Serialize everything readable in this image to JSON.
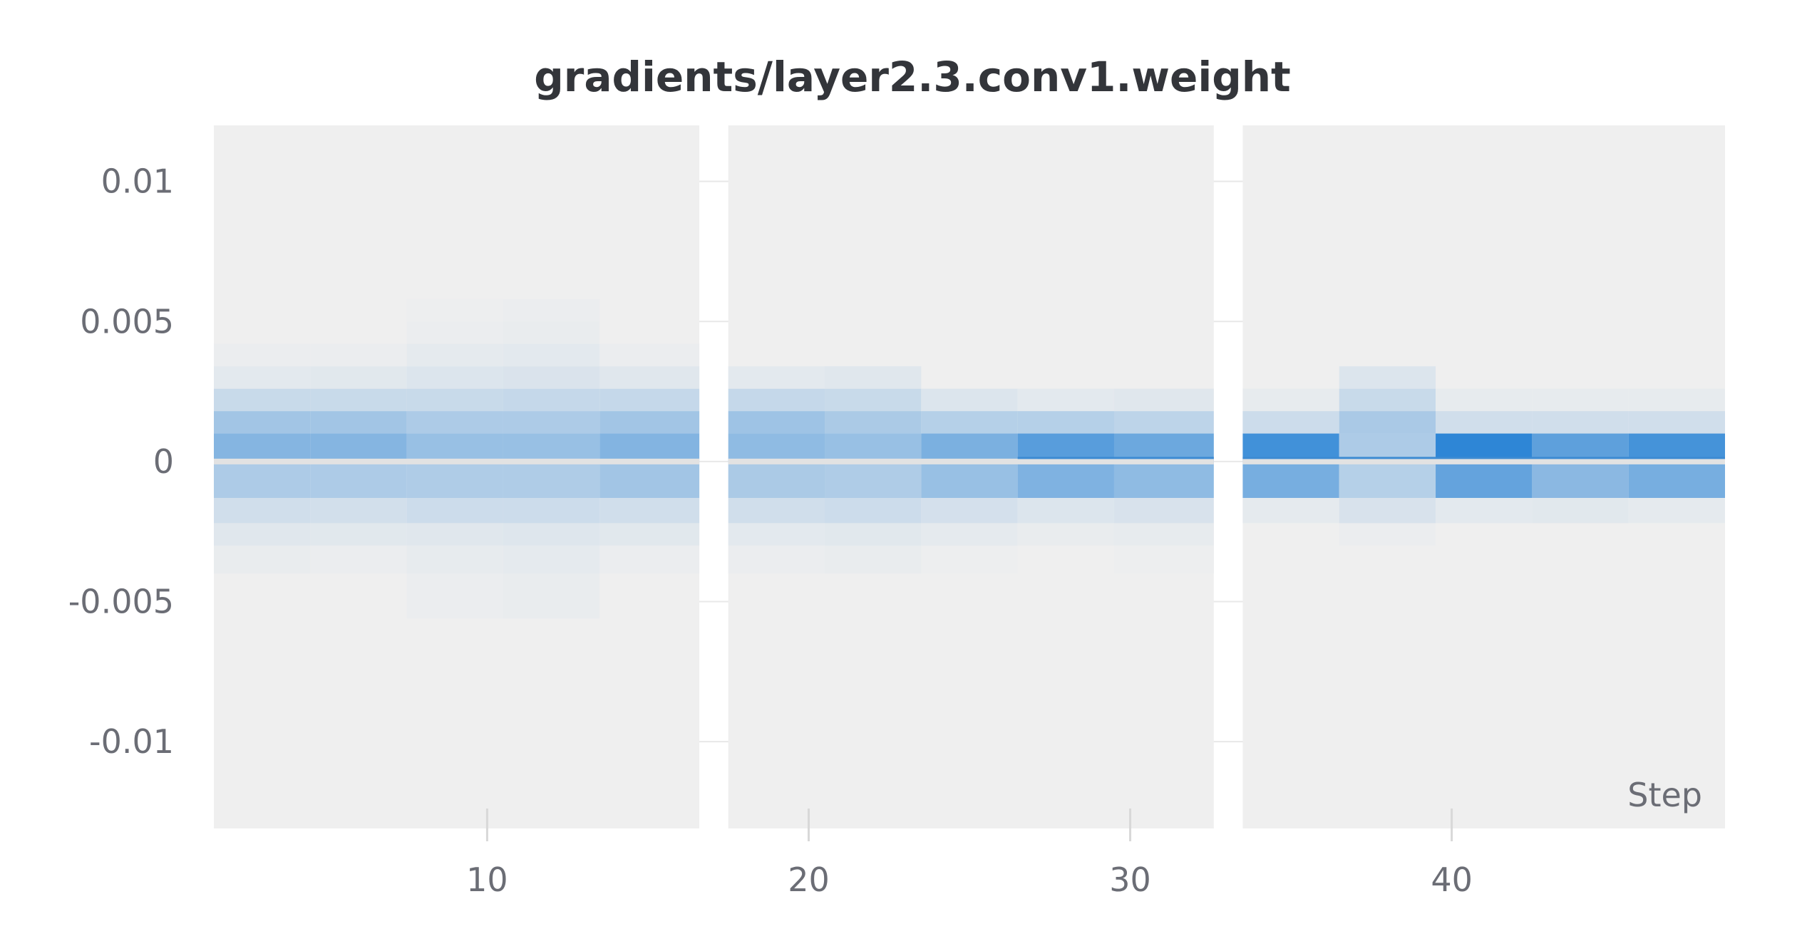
{
  "chart_data": {
    "type": "heatmap",
    "title": "gradients/layer2.3.conv1.weight",
    "xlabel": "Step",
    "ylabel": "",
    "xlim": [
      1.5,
      48.5
    ],
    "ylim": [
      -0.0131,
      0.012
    ],
    "x_ticks": [
      10,
      20,
      30,
      40
    ],
    "x_tick_labels": [
      "10",
      "20",
      "30",
      "40"
    ],
    "y_ticks": [
      0.01,
      0.005,
      0,
      -0.005,
      -0.01
    ],
    "y_tick_labels": [
      "0.01",
      "0.005",
      "0",
      "-0.005",
      "-0.01"
    ],
    "grid": true,
    "panels": [
      {
        "x_range": [
          1.5,
          16.6
        ],
        "columns": [
          {
            "x0": 1.5,
            "x1": 4.5
          },
          {
            "x0": 4.5,
            "x1": 7.5
          },
          {
            "x0": 7.5,
            "x1": 10.5
          },
          {
            "x0": 10.5,
            "x1": 13.5
          },
          {
            "x0": 13.5,
            "x1": 16.6
          }
        ]
      },
      {
        "x_range": [
          17.5,
          32.6
        ],
        "columns": [
          {
            "x0": 17.5,
            "x1": 20.5
          },
          {
            "x0": 20.5,
            "x1": 23.5
          },
          {
            "x0": 23.5,
            "x1": 26.5
          },
          {
            "x0": 26.5,
            "x1": 29.5
          },
          {
            "x0": 29.5,
            "x1": 32.6
          }
        ]
      },
      {
        "x_range": [
          33.5,
          48.5
        ],
        "columns": [
          {
            "x0": 33.5,
            "x1": 36.5
          },
          {
            "x0": 36.5,
            "x1": 39.5
          },
          {
            "x0": 39.5,
            "x1": 42.5
          },
          {
            "x0": 42.5,
            "x1": 45.5
          },
          {
            "x0": 45.5,
            "x1": 48.5
          }
        ]
      }
    ],
    "bins": [
      -0.0056,
      -0.004,
      -0.003,
      -0.0022,
      -0.0013,
      0.0,
      0.001,
      0.0018,
      0.0026,
      0.0034,
      0.0042,
      0.005,
      0.0058
    ],
    "intensity": [
      [
        0.0,
        0.03,
        0.08,
        0.16,
        0.34,
        0.55,
        0.4,
        0.2,
        0.06,
        0.02,
        0.0,
        0.0
      ],
      [
        0.0,
        0.02,
        0.07,
        0.15,
        0.34,
        0.55,
        0.4,
        0.2,
        0.07,
        0.02,
        0.0,
        0.0
      ],
      [
        0.02,
        0.04,
        0.08,
        0.18,
        0.33,
        0.45,
        0.34,
        0.2,
        0.1,
        0.05,
        0.02,
        0.01
      ],
      [
        0.03,
        0.05,
        0.09,
        0.18,
        0.33,
        0.45,
        0.34,
        0.22,
        0.11,
        0.06,
        0.03,
        0.02
      ],
      [
        0.0,
        0.02,
        0.07,
        0.16,
        0.4,
        0.56,
        0.4,
        0.22,
        0.08,
        0.02,
        0.0,
        0.0
      ],
      [
        0.0,
        0.02,
        0.06,
        0.16,
        0.35,
        0.5,
        0.42,
        0.22,
        0.06,
        0.0,
        0.0,
        0.0
      ],
      [
        0.0,
        0.03,
        0.07,
        0.18,
        0.33,
        0.45,
        0.35,
        0.2,
        0.08,
        0.0,
        0.0,
        0.0
      ],
      [
        0.0,
        0.01,
        0.05,
        0.14,
        0.45,
        0.6,
        0.3,
        0.1,
        0.0,
        0.0,
        0.0,
        0.0
      ],
      [
        0.0,
        0.0,
        0.03,
        0.1,
        0.58,
        0.78,
        0.3,
        0.06,
        0.0,
        0.0,
        0.0,
        0.0
      ],
      [
        0.0,
        0.01,
        0.04,
        0.12,
        0.5,
        0.68,
        0.26,
        0.08,
        0.0,
        0.0,
        0.0,
        0.0
      ],
      [
        0.0,
        0.0,
        0.0,
        0.05,
        0.62,
        0.9,
        0.18,
        0.04,
        0.0,
        0.0,
        0.0,
        0.0
      ],
      [
        0.0,
        0.0,
        0.02,
        0.12,
        0.3,
        0.34,
        0.36,
        0.2,
        0.1,
        0.0,
        0.0,
        0.0
      ],
      [
        0.0,
        0.0,
        0.0,
        0.06,
        0.72,
        1.0,
        0.16,
        0.04,
        0.0,
        0.0,
        0.0,
        0.0
      ],
      [
        0.0,
        0.0,
        0.0,
        0.07,
        0.52,
        0.75,
        0.16,
        0.04,
        0.0,
        0.0,
        0.0,
        0.0
      ],
      [
        0.0,
        0.0,
        0.0,
        0.05,
        0.62,
        0.88,
        0.16,
        0.04,
        0.0,
        0.0,
        0.0,
        0.0
      ]
    ],
    "colors": {
      "cell_max": "#2e86d6",
      "cell_min": "#efefef",
      "panel_background": "#efefef",
      "zero_line": "#e2e2e2",
      "zero_line_blue": "#3d8bd3",
      "grid_line": "#e8e8e8",
      "tick_mark": "#d8d8d8",
      "title": "#33353a",
      "tick_text": "#6b6d75"
    }
  }
}
